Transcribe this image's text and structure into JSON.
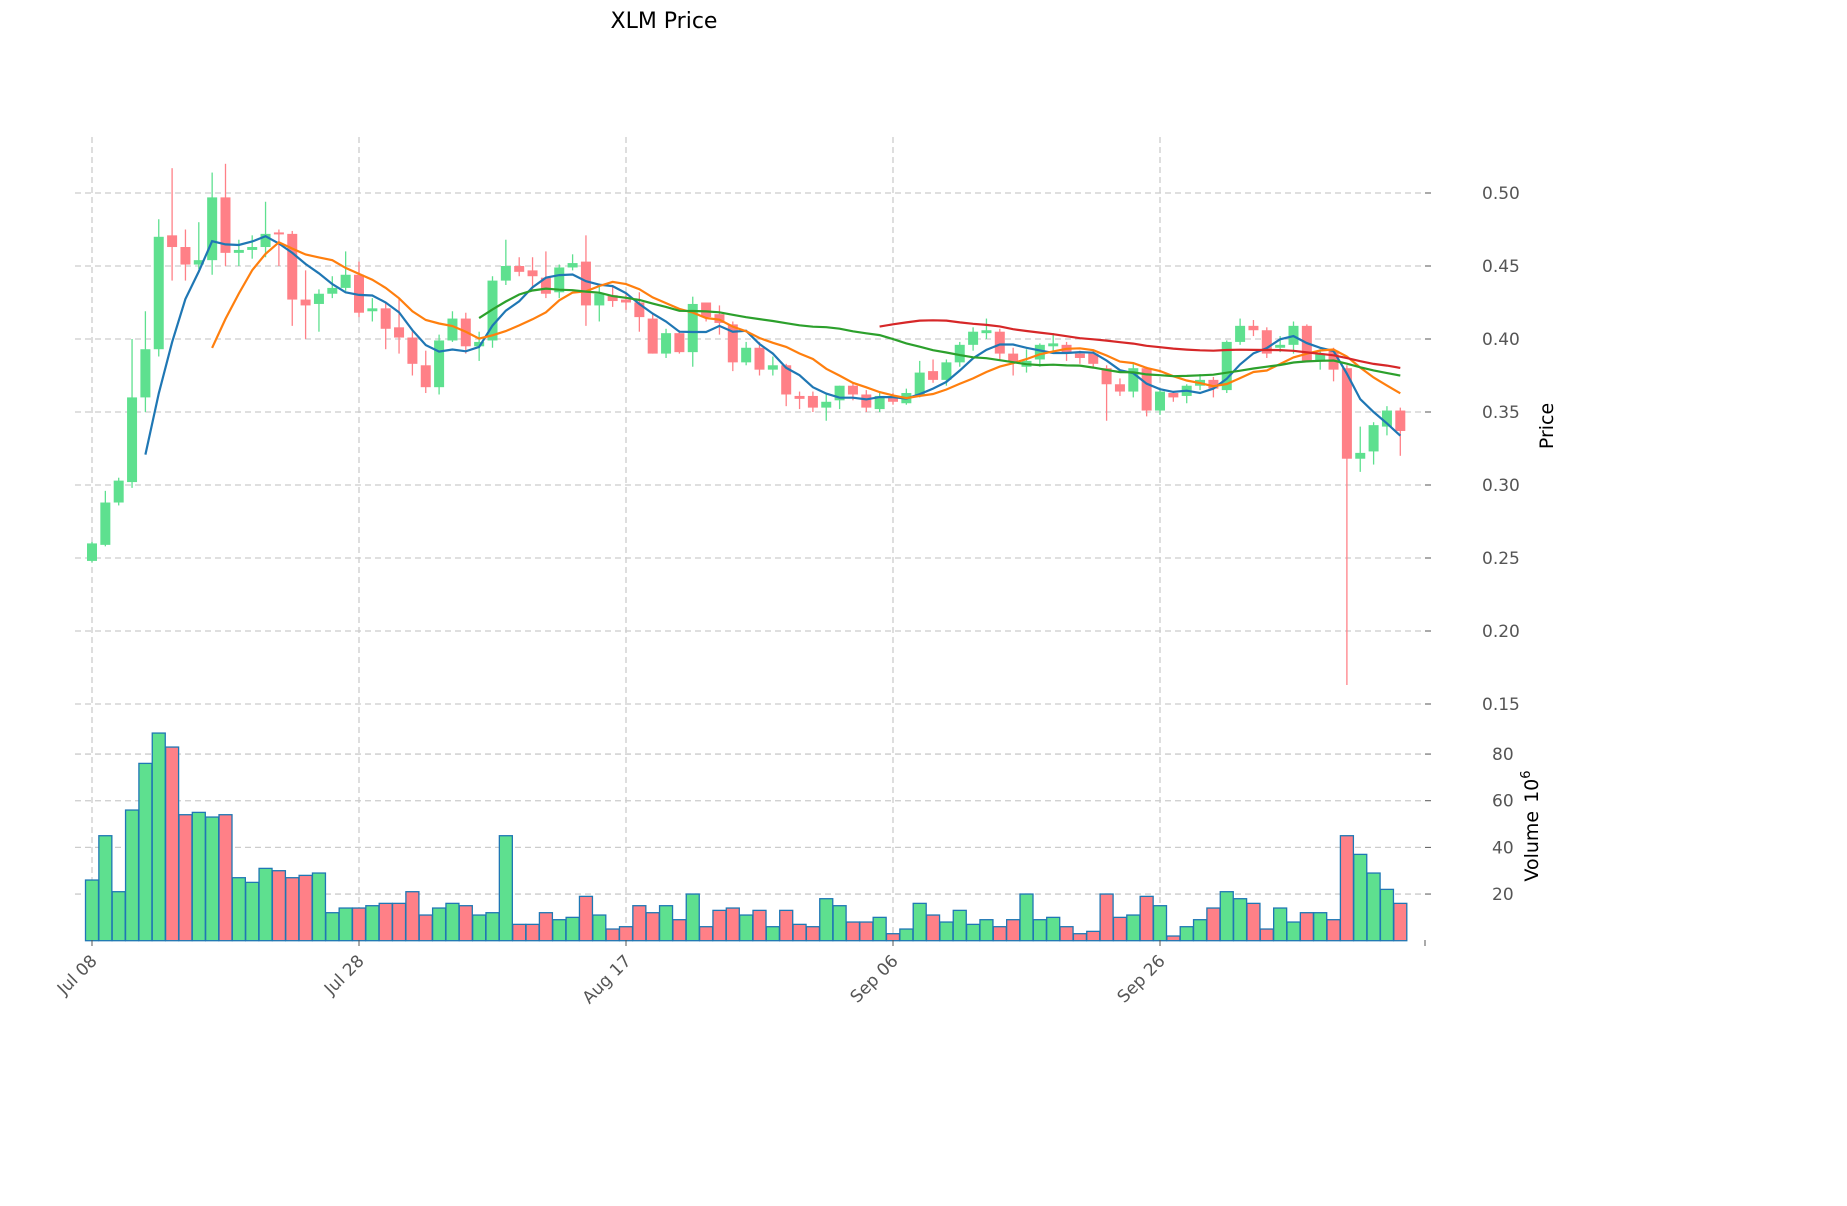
{
  "chart_data": {
    "type": "candlestick",
    "title": "XLM Price",
    "ylabel": "Price",
    "volume_label": "Volume",
    "volume_exponent_label": "10",
    "volume_exponent": "6",
    "ylim": [
      0.13,
      0.54
    ],
    "volume_ylim": [
      0,
      95
    ],
    "price_ticks": [
      "0.15",
      "0.20",
      "0.25",
      "0.30",
      "0.35",
      "0.40",
      "0.45",
      "0.50"
    ],
    "volume_ticks": [
      "20",
      "40",
      "60",
      "80"
    ],
    "x_ticks": [
      {
        "label": "Jul 08",
        "index": 0
      },
      {
        "label": "Jul 28",
        "index": 20
      },
      {
        "label": "Aug 17",
        "index": 40
      },
      {
        "label": "Sep 06",
        "index": 60
      },
      {
        "label": "Sep 26",
        "index": 80
      }
    ],
    "moving_averages": [
      {
        "period": 5,
        "color": "#1f77b4"
      },
      {
        "period": 10,
        "color": "#ff7f0e"
      },
      {
        "period": 30,
        "color": "#2ca02c"
      },
      {
        "period": 60,
        "color": "#d62728"
      }
    ],
    "colors": {
      "up": "#5ee08f",
      "down": "#ff8087",
      "volume_edge": "#1f77b4",
      "grid": "#cccccc"
    },
    "candles_ohlcv": [
      [
        0.248,
        0.261,
        0.247,
        0.26,
        26
      ],
      [
        0.259,
        0.296,
        0.258,
        0.288,
        45
      ],
      [
        0.288,
        0.305,
        0.286,
        0.303,
        21
      ],
      [
        0.302,
        0.4,
        0.298,
        0.36,
        56
      ],
      [
        0.36,
        0.419,
        0.35,
        0.393,
        76
      ],
      [
        0.393,
        0.482,
        0.388,
        0.47,
        89
      ],
      [
        0.471,
        0.517,
        0.44,
        0.463,
        83
      ],
      [
        0.463,
        0.475,
        0.44,
        0.451,
        54
      ],
      [
        0.451,
        0.48,
        0.448,
        0.454,
        55
      ],
      [
        0.454,
        0.514,
        0.444,
        0.497,
        53
      ],
      [
        0.497,
        0.52,
        0.45,
        0.459,
        54
      ],
      [
        0.459,
        0.468,
        0.45,
        0.461,
        27
      ],
      [
        0.461,
        0.471,
        0.455,
        0.463,
        25
      ],
      [
        0.463,
        0.494,
        0.456,
        0.472,
        31
      ],
      [
        0.473,
        0.475,
        0.45,
        0.472,
        30
      ],
      [
        0.472,
        0.474,
        0.409,
        0.427,
        27
      ],
      [
        0.427,
        0.447,
        0.4,
        0.423,
        28
      ],
      [
        0.424,
        0.434,
        0.405,
        0.431,
        29
      ],
      [
        0.431,
        0.443,
        0.428,
        0.435,
        12
      ],
      [
        0.435,
        0.46,
        0.433,
        0.444,
        14
      ],
      [
        0.444,
        0.453,
        0.415,
        0.418,
        14
      ],
      [
        0.419,
        0.428,
        0.412,
        0.421,
        15
      ],
      [
        0.421,
        0.425,
        0.393,
        0.407,
        16
      ],
      [
        0.408,
        0.428,
        0.39,
        0.401,
        16
      ],
      [
        0.401,
        0.406,
        0.375,
        0.383,
        21
      ],
      [
        0.382,
        0.392,
        0.363,
        0.367,
        11
      ],
      [
        0.367,
        0.403,
        0.362,
        0.399,
        14
      ],
      [
        0.399,
        0.419,
        0.398,
        0.414,
        16
      ],
      [
        0.414,
        0.418,
        0.39,
        0.395,
        15
      ],
      [
        0.395,
        0.405,
        0.385,
        0.398,
        11
      ],
      [
        0.399,
        0.443,
        0.394,
        0.44,
        12
      ],
      [
        0.44,
        0.468,
        0.437,
        0.45,
        45
      ],
      [
        0.45,
        0.456,
        0.443,
        0.446,
        7
      ],
      [
        0.447,
        0.456,
        0.434,
        0.443,
        7
      ],
      [
        0.442,
        0.46,
        0.428,
        0.431,
        12
      ],
      [
        0.432,
        0.451,
        0.428,
        0.449,
        9
      ],
      [
        0.449,
        0.458,
        0.447,
        0.452,
        10
      ],
      [
        0.453,
        0.471,
        0.409,
        0.423,
        19
      ],
      [
        0.423,
        0.438,
        0.412,
        0.431,
        11
      ],
      [
        0.43,
        0.436,
        0.422,
        0.426,
        5
      ],
      [
        0.427,
        0.432,
        0.42,
        0.425,
        6
      ],
      [
        0.425,
        0.432,
        0.405,
        0.415,
        15
      ],
      [
        0.414,
        0.418,
        0.39,
        0.39,
        12
      ],
      [
        0.39,
        0.407,
        0.387,
        0.404,
        15
      ],
      [
        0.404,
        0.406,
        0.39,
        0.391,
        9
      ],
      [
        0.391,
        0.429,
        0.381,
        0.424,
        20
      ],
      [
        0.425,
        0.425,
        0.412,
        0.415,
        6
      ],
      [
        0.417,
        0.423,
        0.403,
        0.411,
        13
      ],
      [
        0.41,
        0.412,
        0.378,
        0.384,
        14
      ],
      [
        0.384,
        0.398,
        0.382,
        0.394,
        11
      ],
      [
        0.394,
        0.398,
        0.375,
        0.379,
        13
      ],
      [
        0.379,
        0.388,
        0.375,
        0.382,
        6
      ],
      [
        0.382,
        0.383,
        0.354,
        0.362,
        13
      ],
      [
        0.361,
        0.364,
        0.352,
        0.359,
        7
      ],
      [
        0.361,
        0.364,
        0.35,
        0.353,
        6
      ],
      [
        0.353,
        0.362,
        0.344,
        0.357,
        18
      ],
      [
        0.358,
        0.368,
        0.352,
        0.368,
        15
      ],
      [
        0.368,
        0.37,
        0.358,
        0.362,
        8
      ],
      [
        0.362,
        0.365,
        0.35,
        0.353,
        8
      ],
      [
        0.352,
        0.363,
        0.35,
        0.361,
        10
      ],
      [
        0.36,
        0.363,
        0.355,
        0.357,
        3
      ],
      [
        0.356,
        0.366,
        0.355,
        0.363,
        5
      ],
      [
        0.362,
        0.385,
        0.36,
        0.377,
        16
      ],
      [
        0.378,
        0.386,
        0.37,
        0.372,
        11
      ],
      [
        0.372,
        0.386,
        0.368,
        0.384,
        8
      ],
      [
        0.384,
        0.398,
        0.381,
        0.396,
        13
      ],
      [
        0.396,
        0.408,
        0.392,
        0.405,
        7
      ],
      [
        0.404,
        0.414,
        0.4,
        0.406,
        9
      ],
      [
        0.405,
        0.407,
        0.386,
        0.39,
        6
      ],
      [
        0.39,
        0.394,
        0.375,
        0.384,
        9
      ],
      [
        0.381,
        0.393,
        0.377,
        0.385,
        20
      ],
      [
        0.386,
        0.397,
        0.381,
        0.396,
        9
      ],
      [
        0.395,
        0.404,
        0.392,
        0.397,
        10
      ],
      [
        0.396,
        0.398,
        0.385,
        0.39,
        6
      ],
      [
        0.39,
        0.392,
        0.383,
        0.387,
        3
      ],
      [
        0.39,
        0.392,
        0.38,
        0.383,
        4
      ],
      [
        0.38,
        0.382,
        0.344,
        0.369,
        20
      ],
      [
        0.369,
        0.373,
        0.361,
        0.364,
        10
      ],
      [
        0.364,
        0.383,
        0.36,
        0.38,
        11
      ],
      [
        0.38,
        0.381,
        0.347,
        0.351,
        19
      ],
      [
        0.351,
        0.365,
        0.348,
        0.364,
        15
      ],
      [
        0.363,
        0.364,
        0.357,
        0.36,
        2
      ],
      [
        0.361,
        0.369,
        0.356,
        0.368,
        6
      ],
      [
        0.368,
        0.376,
        0.365,
        0.372,
        9
      ],
      [
        0.372,
        0.374,
        0.36,
        0.366,
        14
      ],
      [
        0.365,
        0.399,
        0.363,
        0.398,
        21
      ],
      [
        0.398,
        0.414,
        0.396,
        0.409,
        18
      ],
      [
        0.409,
        0.413,
        0.402,
        0.406,
        16
      ],
      [
        0.406,
        0.408,
        0.387,
        0.39,
        5
      ],
      [
        0.394,
        0.402,
        0.391,
        0.396,
        14
      ],
      [
        0.396,
        0.412,
        0.39,
        0.409,
        8
      ],
      [
        0.409,
        0.41,
        0.384,
        0.385,
        12
      ],
      [
        0.385,
        0.393,
        0.379,
        0.39,
        12
      ],
      [
        0.392,
        0.394,
        0.371,
        0.379,
        9
      ],
      [
        0.38,
        0.382,
        0.163,
        0.318,
        45
      ],
      [
        0.318,
        0.34,
        0.309,
        0.322,
        37
      ],
      [
        0.323,
        0.343,
        0.314,
        0.341,
        29
      ],
      [
        0.34,
        0.354,
        0.334,
        0.351,
        22
      ],
      [
        0.351,
        0.353,
        0.32,
        0.337,
        16
      ]
    ]
  }
}
